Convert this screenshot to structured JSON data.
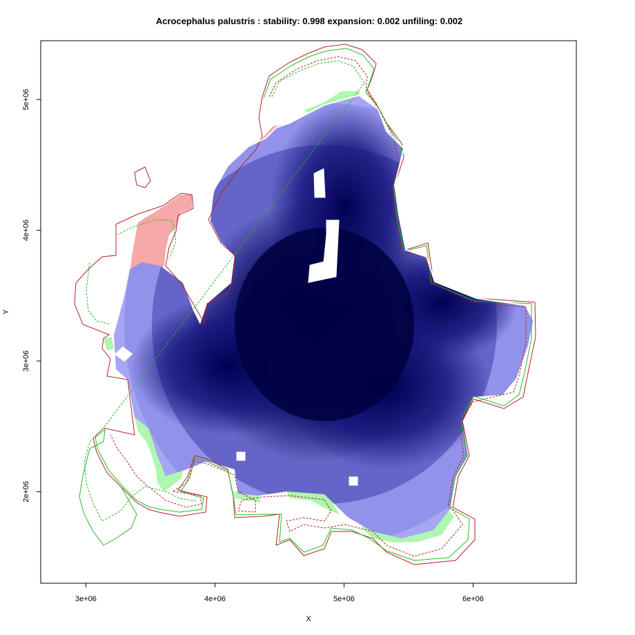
{
  "chart_data": {
    "type": "heatmap",
    "title": "Acrocephalus palustris : stability: 0.998 expansion: 0.002 unfiling: 0.002",
    "xlabel": "X",
    "ylabel": "Y",
    "xlim": [
      2650000,
      6800000
    ],
    "ylim": [
      1300000,
      5450000
    ],
    "x_ticks": [
      {
        "value": 3000000,
        "label": "3e+06"
      },
      {
        "value": 4000000,
        "label": "4e+06"
      },
      {
        "value": 5000000,
        "label": "5e+06"
      },
      {
        "value": 6000000,
        "label": "6e+06"
      }
    ],
    "y_ticks": [
      {
        "value": 2000000,
        "label": "2e+06"
      },
      {
        "value": 3000000,
        "label": "3e+06"
      },
      {
        "value": 4000000,
        "label": "4e+06"
      },
      {
        "value": 5000000,
        "label": "5e+06"
      }
    ],
    "stability": 0.998,
    "expansion": 0.002,
    "unfiling": 0.002,
    "colors": {
      "density_high": "#00004d",
      "density_low": "#a6a6f5",
      "unfilling": "#f7a8a8",
      "expansion": "#aef7ae",
      "contour_native": "#b22222",
      "contour_invaded": "#22bb22",
      "niche_outline": "#ffffff"
    }
  }
}
